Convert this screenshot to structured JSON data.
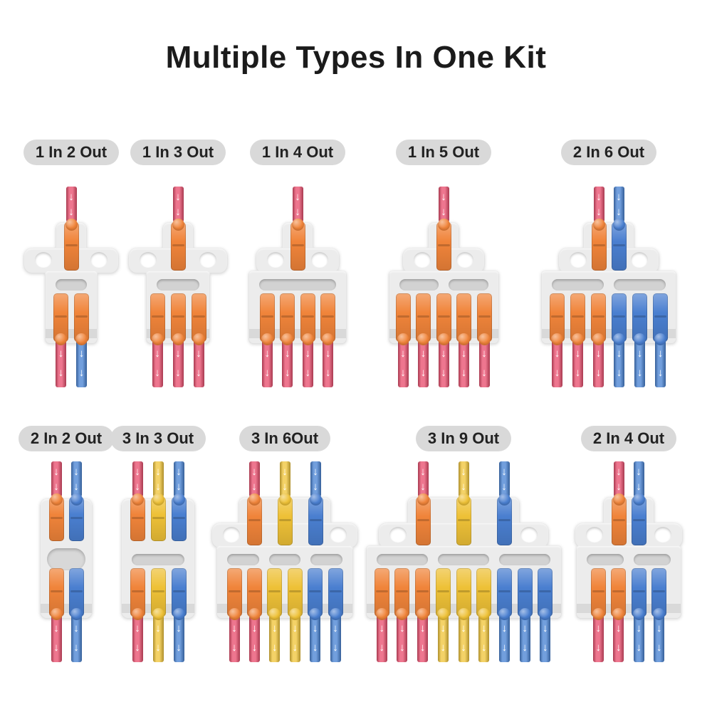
{
  "title": "Multiple Types In One Kit",
  "wire_arrow": "↓",
  "colors": {
    "red_wire": "#e9506f",
    "blue_wire": "#4a84d4",
    "yellow_wire": "#f1c63c",
    "orange_lever": "#f0843a",
    "yellow_lever": "#eec137",
    "blue_lever": "#4a7fd0",
    "connector_body": "#ececec",
    "label_pill_bg": "#d9d9d9",
    "label_text": "#222222",
    "title_color": "#1b1b1b",
    "background": "#ffffff"
  },
  "rows": [
    {
      "connectors": [
        {
          "label": "1 In 2 Out",
          "in_wires": [
            "red"
          ],
          "in_levers": [
            "orange"
          ],
          "out_wires": [
            "red",
            "blue"
          ],
          "out_levers": [
            "orange",
            "orange"
          ],
          "ears": true,
          "slots": 1
        },
        {
          "label": "1 In 3 Out",
          "in_wires": [
            "red"
          ],
          "in_levers": [
            "orange"
          ],
          "out_wires": [
            "red",
            "red",
            "red"
          ],
          "out_levers": [
            "orange",
            "orange",
            "orange"
          ],
          "ears": true,
          "slots": 1
        },
        {
          "label": "1 In 4 Out",
          "in_wires": [
            "red"
          ],
          "in_levers": [
            "orange"
          ],
          "out_wires": [
            "red",
            "red",
            "red",
            "red"
          ],
          "out_levers": [
            "orange",
            "orange",
            "orange",
            "orange"
          ],
          "ears": true,
          "slots": 1
        },
        {
          "label": "1 In 5 Out",
          "in_wires": [
            "red"
          ],
          "in_levers": [
            "orange"
          ],
          "out_wires": [
            "red",
            "red",
            "red",
            "red",
            "red"
          ],
          "out_levers": [
            "orange",
            "orange",
            "orange",
            "orange",
            "orange"
          ],
          "ears": true,
          "slots": 2
        },
        {
          "label": "2 In 6 Out",
          "in_wires": [
            "red",
            "blue"
          ],
          "in_levers": [
            "orange",
            "blue"
          ],
          "out_wires": [
            "red",
            "red",
            "red",
            "blue",
            "blue",
            "blue"
          ],
          "out_levers": [
            "orange",
            "orange",
            "orange",
            "blue",
            "blue",
            "blue"
          ],
          "ears": true,
          "slots": 2
        }
      ]
    },
    {
      "connectors": [
        {
          "label": "2 In 2 Out",
          "in_wires": [
            "red",
            "blue"
          ],
          "in_levers": [
            "orange",
            "blue"
          ],
          "out_wires": [
            "red",
            "blue"
          ],
          "out_levers": [
            "orange",
            "blue"
          ],
          "ears": false,
          "slots": 1
        },
        {
          "label": "3 In 3 Out",
          "in_wires": [
            "red",
            "yellow",
            "blue"
          ],
          "in_levers": [
            "orange",
            "yellow",
            "blue"
          ],
          "out_wires": [
            "red",
            "yellow",
            "blue"
          ],
          "out_levers": [
            "orange",
            "yellow",
            "blue"
          ],
          "ears": false,
          "slots": 1
        },
        {
          "label": "3 In 6Out",
          "in_wires": [
            "red",
            "yellow",
            "blue"
          ],
          "in_levers": [
            "orange",
            "yellow",
            "blue"
          ],
          "out_wires": [
            "red",
            "red",
            "yellow",
            "yellow",
            "blue",
            "blue"
          ],
          "out_levers": [
            "orange",
            "orange",
            "yellow",
            "yellow",
            "blue",
            "blue"
          ],
          "ears": true,
          "slots": 3
        },
        {
          "label": "3 In 9 Out",
          "in_wires": [
            "red",
            "yellow",
            "blue"
          ],
          "in_levers": [
            "orange",
            "yellow",
            "blue"
          ],
          "out_wires": [
            "red",
            "red",
            "red",
            "yellow",
            "yellow",
            "yellow",
            "blue",
            "blue",
            "blue"
          ],
          "out_levers": [
            "orange",
            "orange",
            "orange",
            "yellow",
            "yellow",
            "yellow",
            "blue",
            "blue",
            "blue"
          ],
          "ears": true,
          "slots": 3
        },
        {
          "label": "2 In 4 Out",
          "in_wires": [
            "red",
            "blue"
          ],
          "in_levers": [
            "orange",
            "blue"
          ],
          "out_wires": [
            "red",
            "red",
            "blue",
            "blue"
          ],
          "out_levers": [
            "orange",
            "orange",
            "blue",
            "blue"
          ],
          "ears": true,
          "slots": 2
        }
      ]
    }
  ]
}
